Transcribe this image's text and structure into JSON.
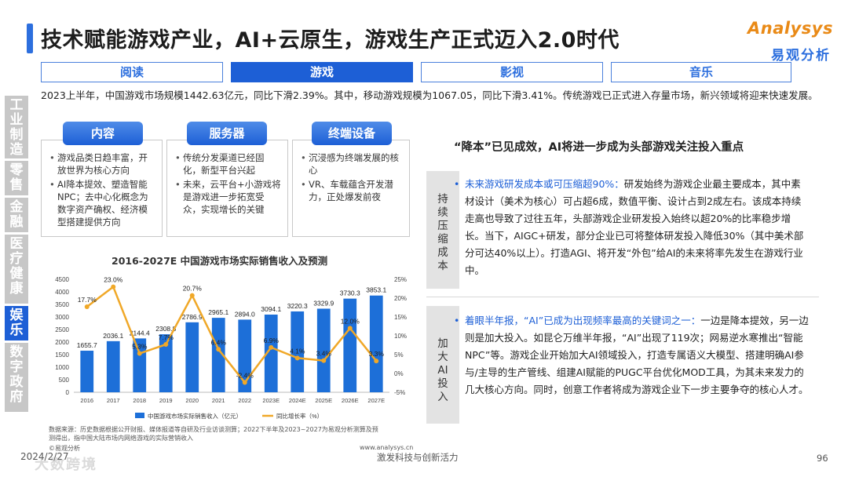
{
  "title": "技术赋能游戏产业，AI+云原生，游戏生产正式迈入2.0时代",
  "logo": {
    "en": "Analysys",
    "cn": "易观分析"
  },
  "tabs": [
    "阅读",
    "游戏",
    "影视",
    "音乐"
  ],
  "active_tab": "游戏",
  "sidebar": [
    "工业制造",
    "零售",
    "金融",
    "医疗健康",
    "娱乐",
    "数字政府"
  ],
  "active_sidebar": "娱乐",
  "intro": "2023上半年，中国游戏市场规模1442.63亿元，同比下滑2.39%。其中，移动游戏规模为1067.05，同比下滑3.41%。传统游戏已正式进入存量市场，新兴领域将迎来快速发展。",
  "columns": [
    {
      "title": "内容",
      "items": [
        "游戏品类日趋丰富，开放世界为核心方向",
        "AI降本提效、塑造智能NPC；去中心化概念为数字资产确权、经济模型搭建提供方向"
      ]
    },
    {
      "title": "服务器",
      "items": [
        "传统分发渠道已经固化，新型平台兴起",
        "未来，云平台+小游戏将是游戏进一步拓宽受众，实现增长的关键"
      ]
    },
    {
      "title": "终端设备",
      "items": [
        "沉浸感为终端发展的核心",
        "VR、车载蕴含开发潜力，正处爆发前夜"
      ]
    }
  ],
  "chart_data": {
    "type": "bar",
    "title": "2016-2027E 中国游戏市场实际销售收入及预测",
    "categories": [
      "2016",
      "2017",
      "2018",
      "2019",
      "2020",
      "2021",
      "2022",
      "2023E",
      "2024E",
      "2025E",
      "2026E",
      "2027E"
    ],
    "series": [
      {
        "name": "中国游戏市场实际销售收入（亿元）",
        "type": "bar",
        "values": [
          1655.7,
          2036.1,
          2144.4,
          2308.8,
          2786.9,
          2965.1,
          2894.0,
          3094.1,
          3220.3,
          3329.9,
          3730.3,
          3853.1
        ],
        "value_labels": [
          "1655.7",
          "2036.1",
          "2144.4",
          "2308.8",
          "2786.9",
          "2965.1",
          "2894.0",
          "3094.1",
          "3220.3",
          "3329.9",
          "3730.3",
          "3853.1"
        ],
        "color": "#1d6fd8"
      },
      {
        "name": "同比增长率（%）",
        "type": "line",
        "axis": "right",
        "values": [
          17.7,
          23.0,
          5.3,
          7.7,
          20.7,
          6.4,
          -2.4,
          6.9,
          4.1,
          3.4,
          12.0,
          3.3
        ],
        "value_labels": [
          "17.7%",
          "23.0%",
          "5.3%",
          "7.7%",
          "20.7%",
          "6.4%",
          "-2.4%",
          "6.9%",
          "4.1%",
          "3.4%",
          "12.0%",
          "3.3%"
        ],
        "color": "#f0a828"
      }
    ],
    "y_left": {
      "min": 0,
      "max": 4500,
      "ticks": [
        "0",
        "500",
        "1000",
        "1500",
        "2000",
        "2500",
        "3000",
        "3500",
        "4000",
        "4500"
      ]
    },
    "y_right": {
      "min": -5,
      "max": 25,
      "ticks": [
        "-5%",
        "0%",
        "5%",
        "10%",
        "15%",
        "20%",
        "25%"
      ]
    },
    "legend": "bottom"
  },
  "source_note": "数据来源：历史数据根据公开财报、媒体报道等自研及行业访谈测算；2022下半年及2023~2027为易观分析测算及预测得出，指中国大陆市场内网络游戏的实际营销收入",
  "source_logo": "©易观分析",
  "source_site": "www.analysys.cn",
  "right_title": "“降本”已见成效，AI将进一步成为头部游戏关注投入重点",
  "blocks": [
    {
      "label": "持续压缩成本",
      "lead": "未来游戏研发成本或可压缩超90%：",
      "body": "研发始终为游戏企业最主要成本，其中素材设计（美术为核心）可占超6成，数值平衡、设计占到2成左右。该成本持续走高也导致了过往五年，头部游戏企业研发投入始终以超20%的比率稳步增长。当下，AIGC+研发，部分企业已可将整体研发投入降低30%（其中美术部分可达40%以上）。打造AGI、将开发“外包”给AI的未来将率先发生在游戏行业中。"
    },
    {
      "label": "加大AI投入",
      "lead": "着眼半年报，“AI”已成为出现频率最高的关键词之一：",
      "body": "一边是降本提效，另一边则是加大投入。如昆仑万维半年报，“AI”出现了119次；网易逆水寒推出“智能NPC”等。游戏企业开始加大AI领域投入，打造专属语义大模型、搭建明确AI参与/主导的生产管线、组建AI赋能的PUGC平台优化MOD工具，为其未来发力的几大核心方向。同时，创意工作者将成为游戏企业下一步主要争夺的核心人才。"
    }
  ],
  "footer": {
    "date": "2024/2/27",
    "center": "激发科技与创新活力",
    "page": "96"
  },
  "watermark": "大数跨境"
}
